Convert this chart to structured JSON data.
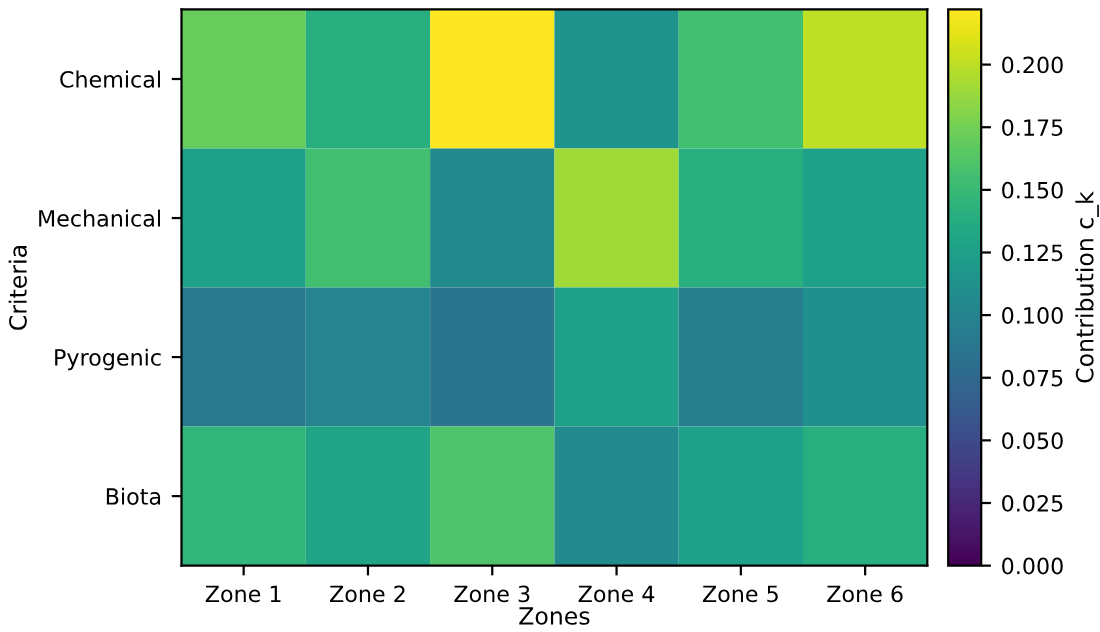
{
  "chart_data": {
    "type": "heatmap",
    "xlabel": "Zones",
    "ylabel": "Criteria",
    "clabel": "Contribution c_k",
    "categories": [
      "Zone 1",
      "Zone 2",
      "Zone 3",
      "Zone 4",
      "Zone 5",
      "Zone 6"
    ],
    "y_categories": [
      "Chemical",
      "Mechanical",
      "Pyrogenic",
      "Biota"
    ],
    "cells": [
      [
        0.17,
        0.14,
        0.222,
        0.115,
        0.155,
        0.2
      ],
      [
        0.125,
        0.155,
        0.105,
        0.19,
        0.14,
        0.125
      ],
      [
        0.09,
        0.1,
        0.085,
        0.125,
        0.095,
        0.11
      ],
      [
        0.145,
        0.13,
        0.16,
        0.105,
        0.125,
        0.14
      ]
    ],
    "clim": [
      0,
      0.222
    ],
    "cticks": [
      {
        "value": 0,
        "label": "0.000"
      },
      {
        "value": 0.025,
        "label": "0.025"
      },
      {
        "value": 0.05,
        "label": "0.050"
      },
      {
        "value": 0.075,
        "label": "0.075"
      },
      {
        "value": 0.1,
        "label": "0.100"
      },
      {
        "value": 0.125,
        "label": "0.125"
      },
      {
        "value": 0.15,
        "label": "0.150"
      },
      {
        "value": 0.175,
        "label": "0.175"
      },
      {
        "value": 0.2,
        "label": "0.200"
      }
    ]
  }
}
